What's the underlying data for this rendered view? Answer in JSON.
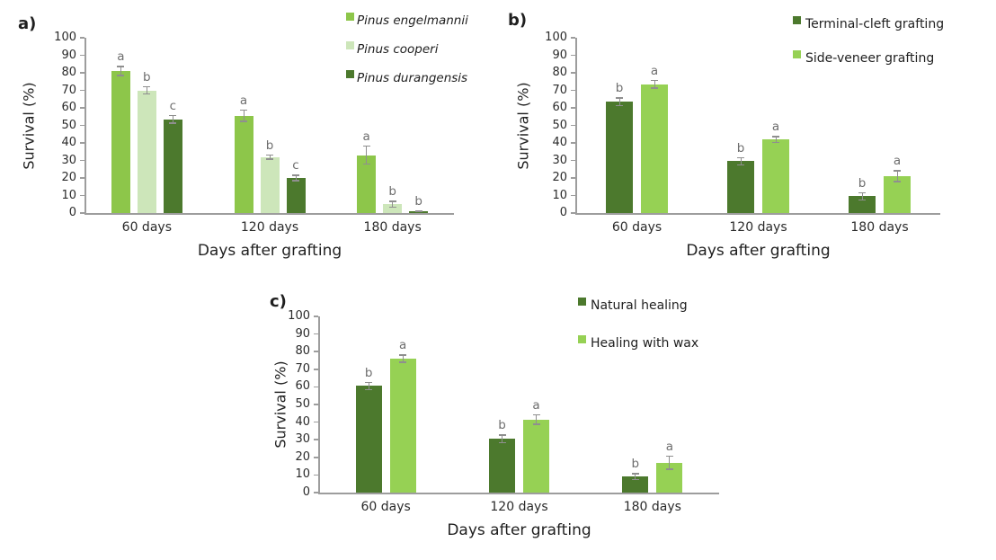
{
  "figure": {
    "background": "#ffffff"
  },
  "styles": {
    "axis_line_color": "#9d9d9d",
    "tick_label_color": "#2b2b2b",
    "error_bar_color": "#8f8f8f",
    "sig_letter_color": "#6e6e6e",
    "text_color": "#1f1f1f"
  },
  "chart_data": [
    {
      "id": "a",
      "type": "bar",
      "panel_label": "a)",
      "title": "",
      "xlabel": "Days after grafting",
      "ylabel": "Survival (%)",
      "ylim": [
        0,
        100
      ],
      "ytick_step": 10,
      "grid": false,
      "legend_position": "top-right",
      "legend_italic": true,
      "categories": [
        "60 days",
        "120 days",
        "180 days"
      ],
      "series": [
        {
          "name": "Pinus engelmannii",
          "color": "#8dc64a",
          "values": [
            81,
            55.5,
            33
          ],
          "errors": [
            3,
            3.5,
            5.5
          ],
          "sig_letters": [
            "a",
            "a",
            "a"
          ]
        },
        {
          "name": "Pinus cooperi",
          "color": "#cde6ba",
          "values": [
            70,
            32,
            5
          ],
          "errors": [
            2.5,
            1.5,
            2
          ],
          "sig_letters": [
            "b",
            "b",
            "b"
          ]
        },
        {
          "name": "Pinus durangensis",
          "color": "#4c792d",
          "values": [
            53.5,
            20,
            1
          ],
          "errors": [
            2.5,
            2,
            0.5
          ],
          "sig_letters": [
            "c",
            "c",
            "b"
          ]
        }
      ]
    },
    {
      "id": "b",
      "type": "bar",
      "panel_label": "b)",
      "title": "",
      "xlabel": "Days after grafting",
      "ylabel": "Survival (%)",
      "ylim": [
        0,
        100
      ],
      "ytick_step": 10,
      "grid": false,
      "legend_position": "top-right",
      "legend_italic": false,
      "categories": [
        "60 days",
        "120 days",
        "180 days"
      ],
      "series": [
        {
          "name": "Terminal-cleft grafting",
          "color": "#4c792d",
          "values": [
            63.5,
            29.5,
            9.5
          ],
          "errors": [
            2.5,
            2.5,
            2.5
          ],
          "sig_letters": [
            "b",
            "b",
            "b"
          ]
        },
        {
          "name": "Side-veneer grafting",
          "color": "#96d154",
          "values": [
            73.5,
            42,
            21
          ],
          "errors": [
            2.5,
            2,
            3.5
          ],
          "sig_letters": [
            "a",
            "a",
            "a"
          ]
        }
      ]
    },
    {
      "id": "c",
      "type": "bar",
      "panel_label": "c)",
      "title": "",
      "xlabel": "Days after grafting",
      "ylabel": "Survival (%)",
      "ylim": [
        0,
        100
      ],
      "ytick_step": 10,
      "grid": false,
      "legend_position": "top-right",
      "legend_italic": false,
      "categories": [
        "60 days",
        "120 days",
        "180 days"
      ],
      "series": [
        {
          "name": "Natural healing",
          "color": "#4c792d",
          "values": [
            60.5,
            30.5,
            9
          ],
          "errors": [
            2.5,
            2.5,
            2
          ],
          "sig_letters": [
            "b",
            "b",
            "b"
          ]
        },
        {
          "name": "Healing with wax",
          "color": "#96d154",
          "values": [
            76,
            41.5,
            17
          ],
          "errors": [
            2.5,
            3,
            4
          ],
          "sig_letters": [
            "a",
            "a",
            "a"
          ]
        }
      ]
    }
  ]
}
